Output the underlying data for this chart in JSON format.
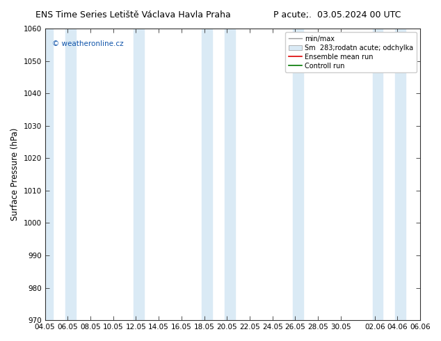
{
  "title_left": "ENS Time Series Letiště Václava Havla Praha",
  "title_right": "P acute;.  03.05.2024 00 UTC",
  "ylabel": "Surface Pressure (hPa)",
  "ylim": [
    970,
    1060
  ],
  "yticks": [
    970,
    980,
    990,
    1000,
    1010,
    1020,
    1030,
    1040,
    1050,
    1060
  ],
  "xlim": [
    0,
    33
  ],
  "xtick_labels": [
    "04.05",
    "06.05",
    "08.05",
    "10.05",
    "12.05",
    "14.05",
    "16.05",
    "18.05",
    "20.05",
    "22.05",
    "24.05",
    "26.05",
    "28.05",
    "30.05",
    "02.06",
    "04.06",
    "06.06"
  ],
  "xtick_positions": [
    0,
    2,
    4,
    6,
    8,
    10,
    12,
    14,
    16,
    18,
    20,
    22,
    24,
    26,
    29,
    31,
    33
  ],
  "band_color": "#daeaf5",
  "background_color": "#ffffff",
  "watermark": "© weatheronline.cz",
  "watermark_color": "#1155aa",
  "legend_items": [
    "min/max",
    "Sm  283;rodatn acute; odchylka",
    "Ensemble mean run",
    "Controll run"
  ],
  "legend_line_color": "#999999",
  "legend_patch_color": "#daeaf5",
  "legend_red": "#dd0000",
  "legend_green": "#007700",
  "title_fontsize": 9,
  "tick_fontsize": 7.5,
  "ylabel_fontsize": 8.5
}
